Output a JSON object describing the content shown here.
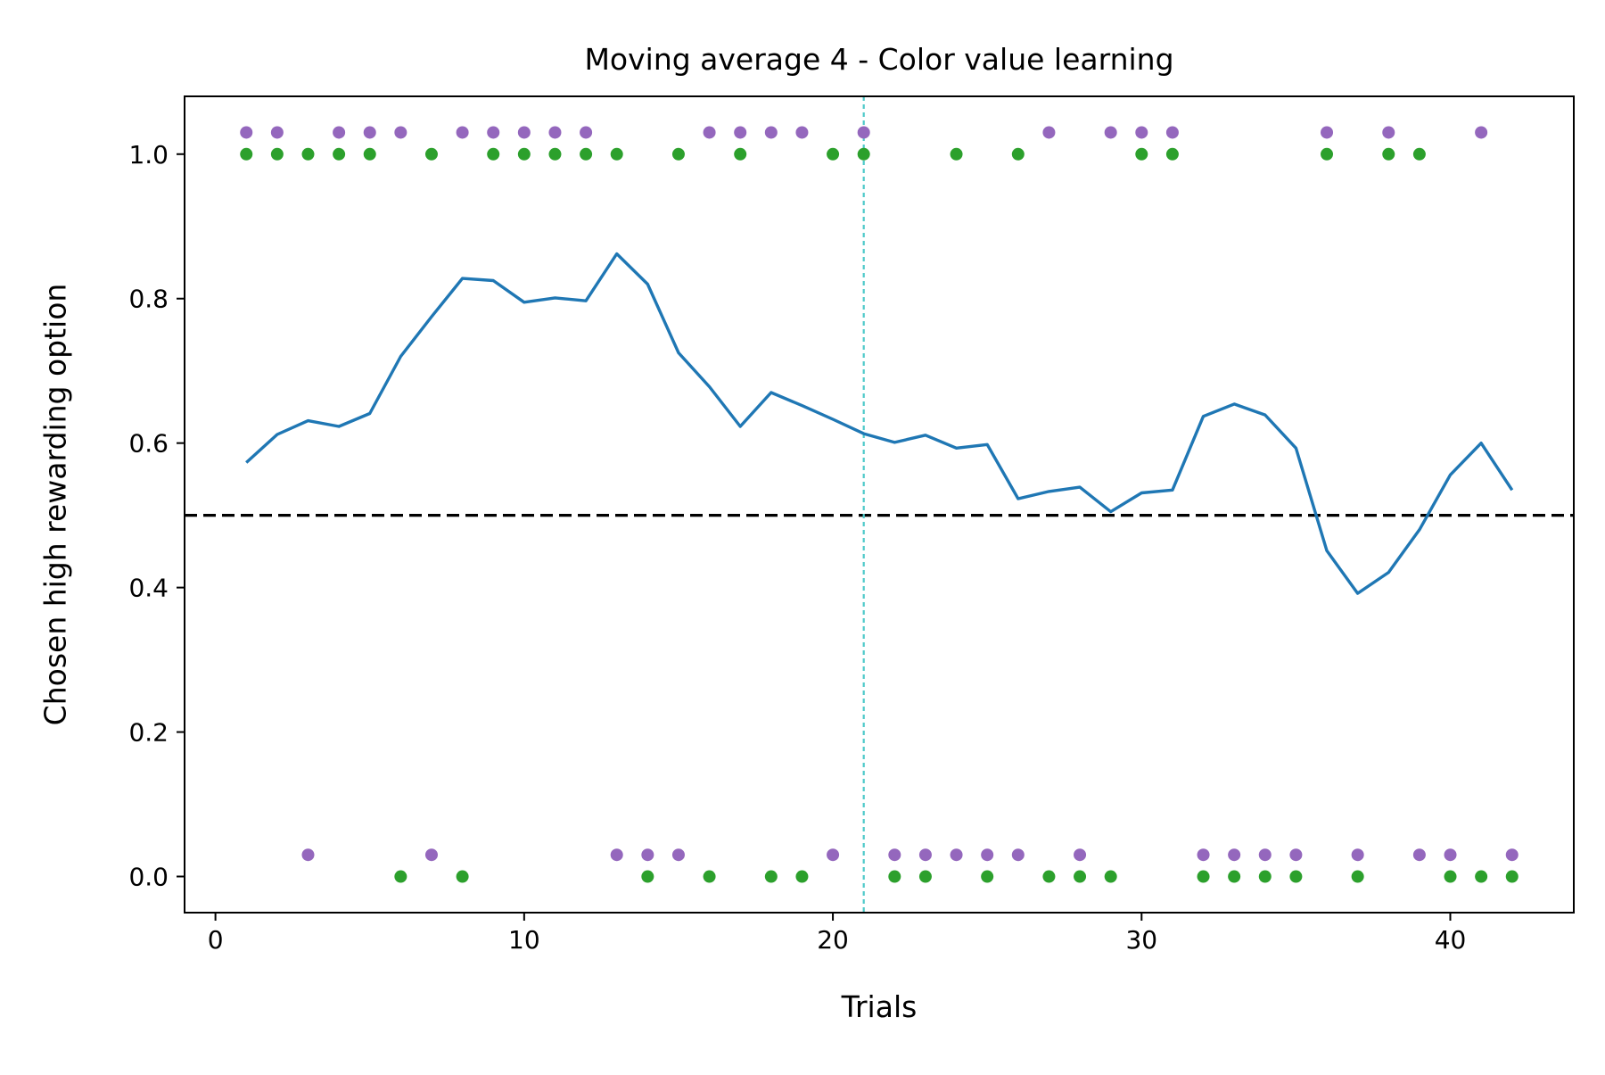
{
  "chart_data": {
    "type": "line",
    "title": "Moving average 4 - Color value learning",
    "xlabel": "Trials",
    "ylabel": "Chosen high rewarding option",
    "xlim": [
      -1.0,
      44.0
    ],
    "ylim": [
      -0.05,
      1.08
    ],
    "x_ticks": [
      0,
      10,
      20,
      30,
      40
    ],
    "x_tick_labels": [
      "0",
      "10",
      "20",
      "30",
      "40"
    ],
    "y_ticks": [
      0.0,
      0.2,
      0.4,
      0.6,
      0.8,
      1.0
    ],
    "y_tick_labels": [
      "0.0",
      "0.2",
      "0.4",
      "0.6",
      "0.8",
      "1.0"
    ],
    "grid": false,
    "reference_lines": [
      {
        "orientation": "horizontal",
        "value": 0.5,
        "style": "dashed",
        "color": "#000000"
      },
      {
        "orientation": "vertical",
        "value": 21,
        "style": "dotted",
        "color": "#4cc9c9"
      }
    ],
    "series": [
      {
        "kind": "line",
        "color": "#1f77b4",
        "x": [
          1,
          2,
          3,
          4,
          5,
          6,
          7,
          8,
          9,
          10,
          11,
          12,
          13,
          14,
          15,
          16,
          17,
          18,
          19,
          20,
          21,
          22,
          23,
          24,
          25,
          26,
          27,
          28,
          29,
          30,
          31,
          32,
          33,
          34,
          35,
          36,
          37,
          38,
          39,
          40,
          41,
          42
        ],
        "y": [
          0.573,
          0.612,
          0.631,
          0.623,
          0.641,
          0.72,
          0.775,
          0.828,
          0.825,
          0.795,
          0.801,
          0.797,
          0.862,
          0.82,
          0.725,
          0.678,
          0.623,
          0.67,
          0.652,
          0.633,
          0.613,
          0.601,
          0.611,
          0.593,
          0.598,
          0.523,
          0.533,
          0.539,
          0.505,
          0.531,
          0.535,
          0.637,
          0.654,
          0.639,
          0.593,
          0.451,
          0.392,
          0.421,
          0.48,
          0.556,
          0.6,
          0.535
        ]
      },
      {
        "kind": "scatter",
        "color": "#9467bd",
        "x": [
          1,
          2,
          3,
          4,
          5,
          6,
          7,
          8,
          9,
          10,
          11,
          12,
          13,
          14,
          15,
          16,
          17,
          18,
          19,
          20,
          21,
          22,
          23,
          24,
          25,
          26,
          27,
          28,
          29,
          30,
          31,
          32,
          33,
          34,
          35,
          36,
          37,
          38,
          39,
          40,
          41,
          42
        ],
        "y": [
          1.03,
          1.03,
          0.03,
          1.03,
          1.03,
          1.03,
          0.03,
          1.03,
          1.03,
          1.03,
          1.03,
          1.03,
          0.03,
          0.03,
          0.03,
          1.03,
          1.03,
          1.03,
          1.03,
          0.03,
          1.03,
          0.03,
          0.03,
          0.03,
          0.03,
          0.03,
          1.03,
          0.03,
          1.03,
          1.03,
          1.03,
          0.03,
          0.03,
          0.03,
          0.03,
          1.03,
          0.03,
          1.03,
          0.03,
          0.03,
          1.03,
          0.03
        ]
      },
      {
        "kind": "scatter",
        "color": "#2ca02c",
        "x": [
          1,
          2,
          3,
          4,
          5,
          6,
          7,
          8,
          9,
          10,
          11,
          12,
          13,
          14,
          15,
          16,
          17,
          18,
          19,
          20,
          21,
          22,
          23,
          24,
          25,
          26,
          27,
          28,
          29,
          30,
          31,
          32,
          33,
          34,
          35,
          36,
          37,
          38,
          39,
          40,
          41,
          42
        ],
        "y": [
          1,
          1,
          1,
          1,
          1,
          0,
          1,
          0,
          1,
          1,
          1,
          1,
          1,
          0,
          1,
          0,
          1,
          0,
          0,
          1,
          1,
          0,
          0,
          1,
          0,
          1,
          0,
          0,
          0,
          1,
          1,
          0,
          0,
          0,
          0,
          1,
          0,
          1,
          1,
          0,
          0,
          0
        ]
      }
    ]
  }
}
